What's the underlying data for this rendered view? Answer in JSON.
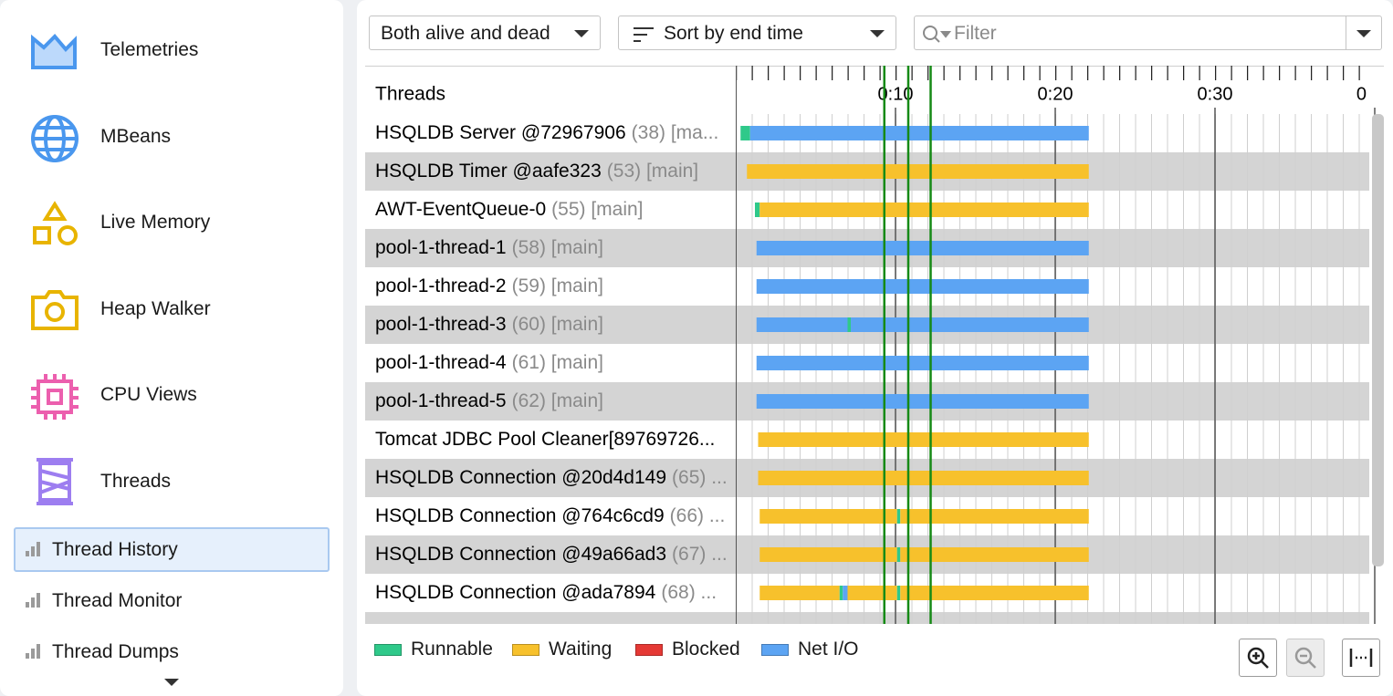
{
  "sidebar": {
    "items": [
      "Telemetries",
      "MBeans",
      "Live Memory",
      "Heap Walker",
      "CPU Views",
      "Threads"
    ],
    "subitems": [
      "Thread History",
      "Thread Monitor",
      "Thread Dumps"
    ]
  },
  "toolbar": {
    "state_filter": "Both alive and dead",
    "sort": "Sort by end time",
    "filter_placeholder": "Filter"
  },
  "timeline": {
    "header": "Threads",
    "xlim": [
      0,
      40
    ],
    "xticks": [
      {
        "value": 10,
        "label": "0:10"
      },
      {
        "value": 20,
        "label": "0:20"
      },
      {
        "value": 30,
        "label": "0:30"
      },
      {
        "value": 40,
        "label": "0"
      }
    ],
    "markers": [
      9.3,
      10.8,
      12.2
    ],
    "legend": [
      {
        "name": "Runnable",
        "color": "#2fc98a"
      },
      {
        "name": "Waiting",
        "color": "#f7c12c"
      },
      {
        "name": "Blocked",
        "color": "#e53935"
      },
      {
        "name": "Net I/O",
        "color": "#5ca4f3"
      }
    ],
    "rows": [
      {
        "name": "HSQLDB Server @72967906",
        "detail": "(38) [ma...",
        "segments": [
          {
            "state": "Runnable",
            "start": 0.3,
            "end": 0.9
          },
          {
            "state": "Net I/O",
            "start": 0.9,
            "end": 22.1
          }
        ]
      },
      {
        "name": "HSQLDB Timer @aafe323",
        "detail": "(53) [main]",
        "segments": [
          {
            "state": "Waiting",
            "start": 0.7,
            "end": 22.1
          }
        ]
      },
      {
        "name": "AWT-EventQueue-0",
        "detail": "(55) [main]",
        "segments": [
          {
            "state": "Runnable",
            "start": 1.2,
            "end": 1.5
          },
          {
            "state": "Waiting",
            "start": 1.5,
            "end": 22.1
          }
        ]
      },
      {
        "name": "pool-1-thread-1",
        "detail": "(58) [main]",
        "segments": [
          {
            "state": "Net I/O",
            "start": 1.3,
            "end": 22.1
          }
        ]
      },
      {
        "name": "pool-1-thread-2",
        "detail": "(59) [main]",
        "segments": [
          {
            "state": "Net I/O",
            "start": 1.3,
            "end": 22.1
          }
        ]
      },
      {
        "name": "pool-1-thread-3",
        "detail": "(60) [main]",
        "segments": [
          {
            "state": "Net I/O",
            "start": 1.3,
            "end": 7.0
          },
          {
            "state": "Runnable",
            "start": 7.0,
            "end": 7.2
          },
          {
            "state": "Net I/O",
            "start": 7.2,
            "end": 22.1
          }
        ]
      },
      {
        "name": "pool-1-thread-4",
        "detail": "(61) [main]",
        "segments": [
          {
            "state": "Net I/O",
            "start": 1.3,
            "end": 22.1
          }
        ]
      },
      {
        "name": "pool-1-thread-5",
        "detail": "(62) [main]",
        "segments": [
          {
            "state": "Net I/O",
            "start": 1.3,
            "end": 22.1
          }
        ]
      },
      {
        "name": "Tomcat JDBC Pool Cleaner[89769726...",
        "segments": [
          {
            "state": "Waiting",
            "start": 1.4,
            "end": 22.1
          }
        ]
      },
      {
        "name": "HSQLDB Connection @20d4d149",
        "detail": "(65) ...",
        "segments": [
          {
            "state": "Waiting",
            "start": 1.4,
            "end": 22.1
          }
        ]
      },
      {
        "name": "HSQLDB Connection @764c6cd9",
        "detail": "(66) ...",
        "segments": [
          {
            "state": "Waiting",
            "start": 1.5,
            "end": 10.1
          },
          {
            "state": "Runnable",
            "start": 10.1,
            "end": 10.3
          },
          {
            "state": "Waiting",
            "start": 10.3,
            "end": 22.1
          }
        ]
      },
      {
        "name": "HSQLDB Connection @49a66ad3",
        "detail": "(67) ...",
        "segments": [
          {
            "state": "Waiting",
            "start": 1.5,
            "end": 10.1
          },
          {
            "state": "Runnable",
            "start": 10.1,
            "end": 10.3
          },
          {
            "state": "Waiting",
            "start": 10.3,
            "end": 22.1
          }
        ]
      },
      {
        "name": "HSQLDB Connection @ada7894",
        "detail": "(68) ...",
        "segments": [
          {
            "state": "Waiting",
            "start": 1.5,
            "end": 6.5
          },
          {
            "state": "Runnable",
            "start": 6.5,
            "end": 6.7
          },
          {
            "state": "Net I/O",
            "start": 6.7,
            "end": 7.0
          },
          {
            "state": "Waiting",
            "start": 7.0,
            "end": 10.1
          },
          {
            "state": "Runnable",
            "start": 10.1,
            "end": 10.3
          },
          {
            "state": "Waiting",
            "start": 10.3,
            "end": 22.1
          }
        ]
      }
    ]
  }
}
